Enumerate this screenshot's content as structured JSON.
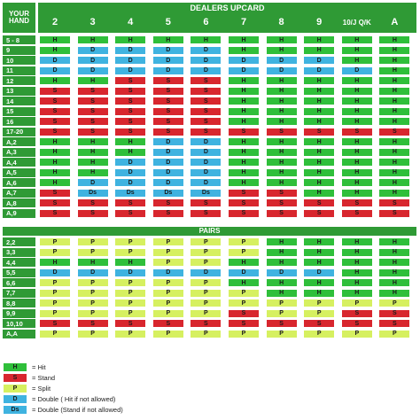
{
  "header": {
    "your_hand": "YOUR HAND",
    "dealers_upcard": "DEALERS UPCARD",
    "pairs": "PAIRS",
    "upcards": [
      "2",
      "3",
      "4",
      "5",
      "6",
      "7",
      "8",
      "9",
      "10/J Q/K",
      "A"
    ]
  },
  "colors": {
    "H": "#2fbf3a",
    "S": "#d8262e",
    "D": "#3fb3e0",
    "Ds": "#3fb3e0",
    "P": "#d6f060",
    "header": "#2f9a35",
    "label": "#2f9a35"
  },
  "hard_soft_rows": [
    {
      "label": "5 - 8",
      "cells": [
        "H",
        "H",
        "H",
        "H",
        "H",
        "H",
        "H",
        "H",
        "H",
        "H"
      ]
    },
    {
      "label": "9",
      "cells": [
        "H",
        "D",
        "D",
        "D",
        "D",
        "H",
        "H",
        "H",
        "H",
        "H"
      ]
    },
    {
      "label": "10",
      "cells": [
        "D",
        "D",
        "D",
        "D",
        "D",
        "D",
        "D",
        "D",
        "H",
        "H"
      ]
    },
    {
      "label": "11",
      "cells": [
        "D",
        "D",
        "D",
        "D",
        "D",
        "D",
        "D",
        "D",
        "D",
        "H"
      ]
    },
    {
      "label": "12",
      "cells": [
        "H",
        "H",
        "S",
        "S",
        "S",
        "H",
        "H",
        "H",
        "H",
        "H"
      ]
    },
    {
      "label": "13",
      "cells": [
        "S",
        "S",
        "S",
        "S",
        "S",
        "H",
        "H",
        "H",
        "H",
        "H"
      ]
    },
    {
      "label": "14",
      "cells": [
        "S",
        "S",
        "S",
        "S",
        "S",
        "H",
        "H",
        "H",
        "H",
        "H"
      ]
    },
    {
      "label": "15",
      "cells": [
        "S",
        "S",
        "S",
        "S",
        "S",
        "H",
        "H",
        "H",
        "H",
        "H"
      ]
    },
    {
      "label": "16",
      "cells": [
        "S",
        "S",
        "S",
        "S",
        "S",
        "H",
        "H",
        "H",
        "H",
        "H"
      ]
    },
    {
      "label": "17-20",
      "cells": [
        "S",
        "S",
        "S",
        "S",
        "S",
        "S",
        "S",
        "S",
        "S",
        "S"
      ]
    },
    {
      "label": "A,2",
      "cells": [
        "H",
        "H",
        "H",
        "D",
        "D",
        "H",
        "H",
        "H",
        "H",
        "H"
      ]
    },
    {
      "label": "A,3",
      "cells": [
        "H",
        "H",
        "H",
        "D",
        "D",
        "H",
        "H",
        "H",
        "H",
        "H"
      ]
    },
    {
      "label": "A,4",
      "cells": [
        "H",
        "H",
        "D",
        "D",
        "D",
        "H",
        "H",
        "H",
        "H",
        "H"
      ]
    },
    {
      "label": "A,5",
      "cells": [
        "H",
        "H",
        "D",
        "D",
        "D",
        "H",
        "H",
        "H",
        "H",
        "H"
      ]
    },
    {
      "label": "A,6",
      "cells": [
        "H",
        "D",
        "D",
        "D",
        "D",
        "H",
        "H",
        "H",
        "H",
        "H"
      ]
    },
    {
      "label": "A,7",
      "cells": [
        "S",
        "Ds",
        "Ds",
        "Ds",
        "Ds",
        "S",
        "S",
        "H",
        "H",
        "H"
      ]
    },
    {
      "label": "A,8",
      "cells": [
        "S",
        "S",
        "S",
        "S",
        "S",
        "S",
        "S",
        "S",
        "S",
        "S"
      ]
    },
    {
      "label": "A,9",
      "cells": [
        "S",
        "S",
        "S",
        "S",
        "S",
        "S",
        "S",
        "S",
        "S",
        "S"
      ]
    }
  ],
  "pair_rows": [
    {
      "label": "2,2",
      "cells": [
        "P",
        "P",
        "P",
        "P",
        "P",
        "P",
        "H",
        "H",
        "H",
        "H"
      ]
    },
    {
      "label": "3,3",
      "cells": [
        "P",
        "P",
        "P",
        "P",
        "P",
        "P",
        "H",
        "H",
        "H",
        "H"
      ]
    },
    {
      "label": "4,4",
      "cells": [
        "H",
        "H",
        "H",
        "P",
        "P",
        "H",
        "H",
        "H",
        "H",
        "H"
      ]
    },
    {
      "label": "5,5",
      "cells": [
        "D",
        "D",
        "D",
        "D",
        "D",
        "D",
        "D",
        "D",
        "H",
        "H"
      ]
    },
    {
      "label": "6,6",
      "cells": [
        "P",
        "P",
        "P",
        "P",
        "P",
        "H",
        "H",
        "H",
        "H",
        "H"
      ]
    },
    {
      "label": "7,7",
      "cells": [
        "P",
        "P",
        "P",
        "P",
        "P",
        "P",
        "H",
        "H",
        "H",
        "H"
      ]
    },
    {
      "label": "8,8",
      "cells": [
        "P",
        "P",
        "P",
        "P",
        "P",
        "P",
        "P",
        "P",
        "P",
        "P"
      ]
    },
    {
      "label": "9,9",
      "cells": [
        "P",
        "P",
        "P",
        "P",
        "P",
        "S",
        "P",
        "P",
        "S",
        "S"
      ]
    },
    {
      "label": "10,10",
      "cells": [
        "S",
        "S",
        "S",
        "S",
        "S",
        "S",
        "S",
        "S",
        "S",
        "S"
      ]
    },
    {
      "label": "A,A",
      "cells": [
        "P",
        "P",
        "P",
        "P",
        "P",
        "P",
        "P",
        "P",
        "P",
        "P"
      ]
    }
  ],
  "legend": [
    {
      "code": "H",
      "text": "= Hit"
    },
    {
      "code": "S",
      "text": "= Stand"
    },
    {
      "code": "P",
      "text": "= Split"
    },
    {
      "code": "D",
      "text": "= Double ( Hit if not allowed)"
    },
    {
      "code": "Ds",
      "text": "= Double (Stand if not allowed)"
    }
  ]
}
